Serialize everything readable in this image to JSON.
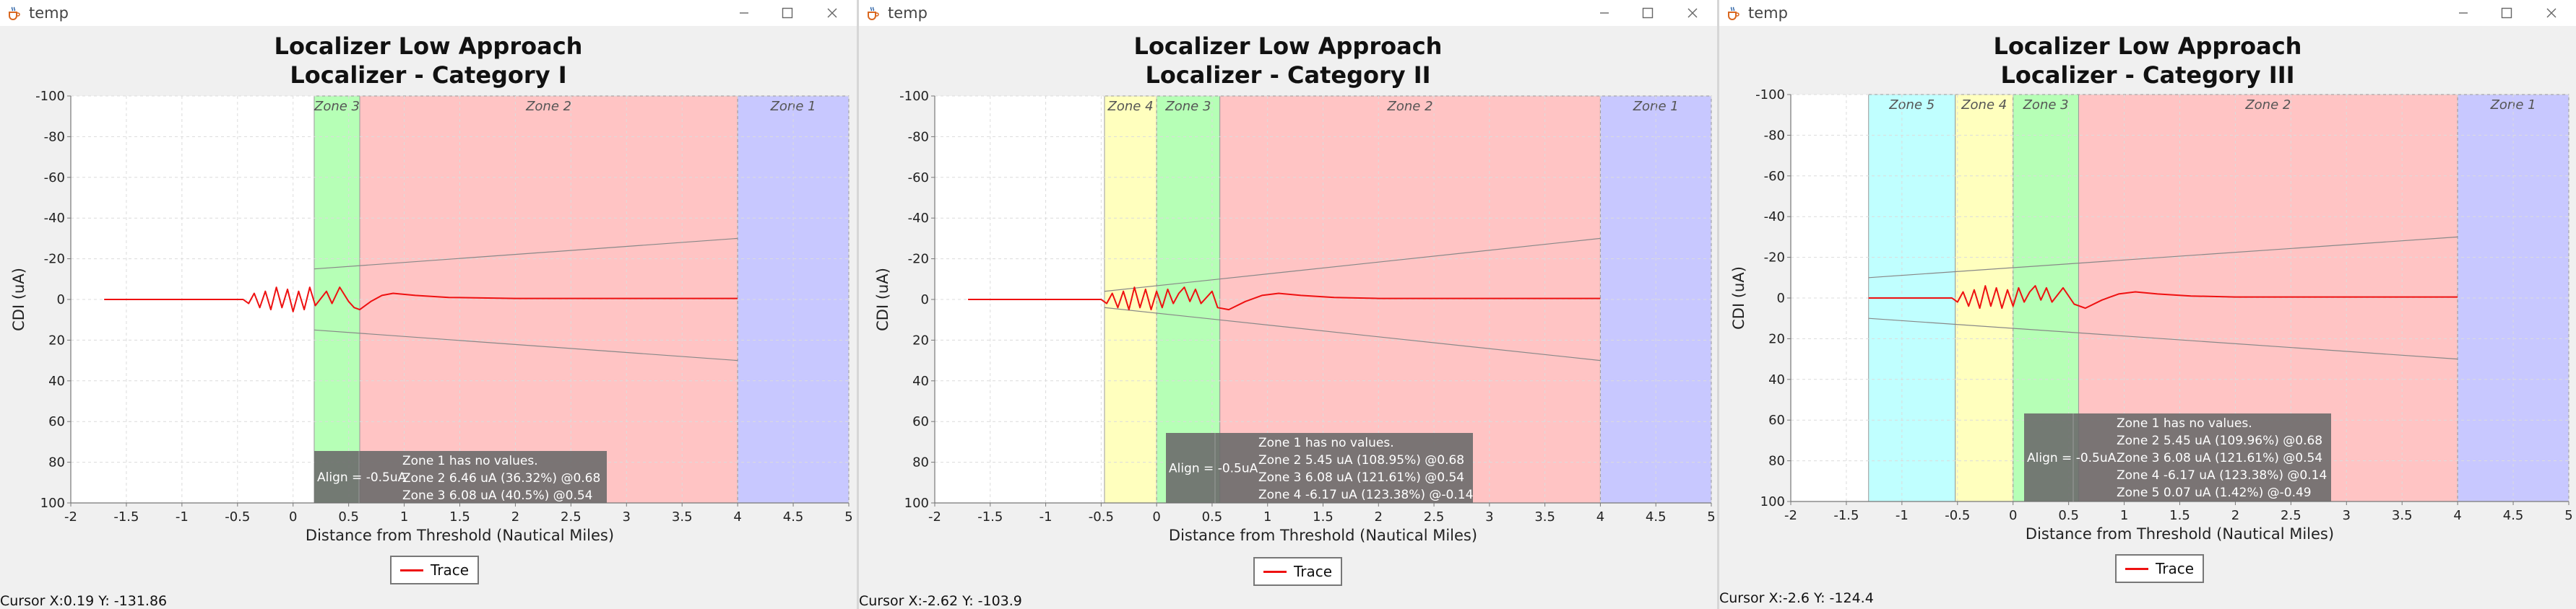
{
  "windows": [
    {
      "window_title": "temp",
      "title_line1": "Localizer Low Approach",
      "title_line2": "Localizer - Category I",
      "cursor_text": "Cursor X:0.19 Y: -131.86"
    },
    {
      "window_title": "temp",
      "title_line1": "Localizer Low Approach",
      "title_line2": "Localizer - Category II",
      "cursor_text": "Cursor X:-2.62 Y: -103.9"
    },
    {
      "window_title": "temp",
      "title_line1": "Localizer Low Approach",
      "title_line2": "Localizer - Category III",
      "cursor_text": "Cursor X:-2.6 Y: -124.4"
    }
  ],
  "chart_data": [
    {
      "type": "line",
      "title": "Localizer Low Approach\nLocalizer - Category I",
      "xlabel": "Distance from Threshold (Nautical Miles)",
      "ylabel": "CDI (uA)",
      "xlim": [
        -2,
        5
      ],
      "ylim": [
        100,
        -100
      ],
      "y_inverted": true,
      "grid": true,
      "legend_location": "bottom-center",
      "x_ticks": [
        -2,
        -1.5,
        -1,
        -0.5,
        0,
        0.5,
        1,
        1.5,
        2,
        2.5,
        3,
        3.5,
        4,
        4.5,
        5
      ],
      "y_ticks": [
        -100,
        -80,
        -60,
        -40,
        -20,
        0,
        20,
        40,
        60,
        80,
        100
      ],
      "zones": [
        {
          "name": "Zone 3",
          "x_start": 0.19,
          "x_end": 0.6,
          "color": "#b6ffb6"
        },
        {
          "name": "Zone 2",
          "x_start": 0.6,
          "x_end": 4.0,
          "color": "#ffc4c4"
        },
        {
          "name": "Zone 1",
          "x_start": 4.0,
          "x_end": 5.0,
          "color": "#c8c8ff"
        }
      ],
      "limits": [
        {
          "x": [
            0.19,
            4.0
          ],
          "y": [
            -15,
            -30
          ]
        },
        {
          "x": [
            0.19,
            4.0
          ],
          "y": [
            15,
            30
          ]
        }
      ],
      "series": [
        {
          "name": "Trace",
          "color": "#ee1111",
          "points": [
            [
              -1.7,
              0
            ],
            [
              -0.45,
              0
            ],
            [
              -0.4,
              2
            ],
            [
              -0.35,
              -3
            ],
            [
              -0.3,
              4
            ],
            [
              -0.25,
              -4
            ],
            [
              -0.2,
              5
            ],
            [
              -0.15,
              -6
            ],
            [
              -0.1,
              4
            ],
            [
              -0.05,
              -5
            ],
            [
              0.0,
              6
            ],
            [
              0.05,
              -4
            ],
            [
              0.1,
              5
            ],
            [
              0.15,
              -6
            ],
            [
              0.2,
              3
            ],
            [
              0.3,
              -4
            ],
            [
              0.35,
              2
            ],
            [
              0.42,
              -6
            ],
            [
              0.5,
              1
            ],
            [
              0.55,
              4
            ],
            [
              0.6,
              5
            ],
            [
              0.7,
              1
            ],
            [
              0.8,
              -2
            ],
            [
              0.9,
              -3
            ],
            [
              1.1,
              -2
            ],
            [
              1.4,
              -1
            ],
            [
              2.0,
              -0.5
            ],
            [
              3.0,
              -0.5
            ],
            [
              4.0,
              -0.5
            ]
          ]
        }
      ],
      "annotation": {
        "align": "Align = -0.5uA",
        "lines": [
          "Zone 1 has no values.",
          "Zone 2 6.46 uA (36.32%) @0.68",
          "Zone 3 6.08 uA (40.5%) @0.54"
        ]
      }
    },
    {
      "type": "line",
      "title": "Localizer Low Approach\nLocalizer - Category II",
      "xlabel": "Distance from Threshold (Nautical Miles)",
      "ylabel": "CDI (uA)",
      "xlim": [
        -2,
        5
      ],
      "ylim": [
        100,
        -100
      ],
      "y_inverted": true,
      "grid": true,
      "legend_location": "bottom-center",
      "x_ticks": [
        -2,
        -1.5,
        -1,
        -0.5,
        0,
        0.5,
        1,
        1.5,
        2,
        2.5,
        3,
        3.5,
        4,
        4.5,
        5
      ],
      "y_ticks": [
        -100,
        -80,
        -60,
        -40,
        -20,
        0,
        20,
        40,
        60,
        80,
        100
      ],
      "zones": [
        {
          "name": "Zone 4",
          "x_start": -0.47,
          "x_end": 0.0,
          "color": "#ffffbe"
        },
        {
          "name": "Zone 3",
          "x_start": 0.0,
          "x_end": 0.57,
          "color": "#b6ffb6"
        },
        {
          "name": "Zone 2",
          "x_start": 0.57,
          "x_end": 4.0,
          "color": "#ffc4c4"
        },
        {
          "name": "Zone 1",
          "x_start": 4.0,
          "x_end": 5.0,
          "color": "#c8c8ff"
        }
      ],
      "limits": [
        {
          "x": [
            -0.47,
            4.0
          ],
          "y": [
            -4,
            -30
          ]
        },
        {
          "x": [
            -0.47,
            4.0
          ],
          "y": [
            4,
            30
          ]
        }
      ],
      "series": [
        {
          "name": "Trace",
          "color": "#ee1111",
          "points": [
            [
              -1.7,
              0
            ],
            [
              -0.5,
              0
            ],
            [
              -0.45,
              2
            ],
            [
              -0.4,
              -3
            ],
            [
              -0.35,
              4
            ],
            [
              -0.3,
              -4
            ],
            [
              -0.25,
              5
            ],
            [
              -0.2,
              -6
            ],
            [
              -0.15,
              4
            ],
            [
              -0.1,
              -5
            ],
            [
              -0.05,
              5
            ],
            [
              0.0,
              -4
            ],
            [
              0.05,
              4
            ],
            [
              0.1,
              -5
            ],
            [
              0.15,
              2
            ],
            [
              0.2,
              -3
            ],
            [
              0.25,
              -6
            ],
            [
              0.3,
              1
            ],
            [
              0.35,
              -5
            ],
            [
              0.4,
              2
            ],
            [
              0.5,
              -4
            ],
            [
              0.55,
              4
            ],
            [
              0.65,
              5
            ],
            [
              0.8,
              1
            ],
            [
              0.95,
              -2
            ],
            [
              1.1,
              -3
            ],
            [
              1.3,
              -2
            ],
            [
              1.6,
              -1
            ],
            [
              2.0,
              -0.5
            ],
            [
              4.0,
              -0.5
            ]
          ]
        }
      ],
      "annotation": {
        "align": "Align = -0.5uA",
        "lines": [
          "Zone 1 has no values.",
          "Zone 2 5.45 uA (108.95%) @0.68",
          "Zone 3 6.08 uA (121.61%) @0.54",
          "Zone 4 -6.17 uA (123.38%) @-0.14"
        ]
      }
    },
    {
      "type": "line",
      "title": "Localizer Low Approach\nLocalizer - Category III",
      "xlabel": "Distance from Threshold (Nautical Miles)",
      "ylabel": "CDI (uA)",
      "xlim": [
        -2,
        5
      ],
      "ylim": [
        100,
        -100
      ],
      "y_inverted": true,
      "grid": true,
      "legend_location": "bottom-center",
      "x_ticks": [
        -2,
        -1.5,
        -1,
        -0.5,
        0,
        0.5,
        1,
        1.5,
        2,
        2.5,
        3,
        3.5,
        4,
        4.5,
        5
      ],
      "y_ticks": [
        -100,
        -80,
        -60,
        -40,
        -20,
        0,
        20,
        40,
        60,
        80,
        100
      ],
      "zones": [
        {
          "name": "Zone 5",
          "x_start": -1.3,
          "x_end": -0.52,
          "color": "#c0ffff"
        },
        {
          "name": "Zone 4",
          "x_start": -0.52,
          "x_end": 0.0,
          "color": "#ffffbe"
        },
        {
          "name": "Zone 3",
          "x_start": 0.0,
          "x_end": 0.59,
          "color": "#b6ffb6"
        },
        {
          "name": "Zone 2",
          "x_start": 0.59,
          "x_end": 4.0,
          "color": "#ffc4c4"
        },
        {
          "name": "Zone 1",
          "x_start": 4.0,
          "x_end": 5.0,
          "color": "#c8c8ff"
        }
      ],
      "limits": [
        {
          "x": [
            -1.3,
            4.0
          ],
          "y": [
            -10,
            -30
          ]
        },
        {
          "x": [
            -1.3,
            4.0
          ],
          "y": [
            10,
            30
          ]
        }
      ],
      "series": [
        {
          "name": "Trace",
          "color": "#ee1111",
          "points": [
            [
              -1.3,
              0
            ],
            [
              -0.55,
              0
            ],
            [
              -0.5,
              2
            ],
            [
              -0.45,
              -3
            ],
            [
              -0.4,
              4
            ],
            [
              -0.35,
              -4
            ],
            [
              -0.3,
              5
            ],
            [
              -0.25,
              -6
            ],
            [
              -0.2,
              4
            ],
            [
              -0.15,
              -5
            ],
            [
              -0.1,
              5
            ],
            [
              -0.05,
              -4
            ],
            [
              0.0,
              4
            ],
            [
              0.05,
              -5
            ],
            [
              0.1,
              2
            ],
            [
              0.15,
              -3
            ],
            [
              0.2,
              -6
            ],
            [
              0.25,
              1
            ],
            [
              0.3,
              -5
            ],
            [
              0.35,
              2
            ],
            [
              0.45,
              -5
            ],
            [
              0.55,
              3
            ],
            [
              0.65,
              5
            ],
            [
              0.8,
              1
            ],
            [
              0.95,
              -2
            ],
            [
              1.1,
              -3
            ],
            [
              1.3,
              -2
            ],
            [
              1.6,
              -1
            ],
            [
              2.0,
              -0.5
            ],
            [
              4.0,
              -0.5
            ]
          ]
        }
      ],
      "annotation": {
        "align": "Align = -0.5uA",
        "lines": [
          "Zone 1 has no values.",
          "Zone 2 5.45 uA (109.96%) @0.68",
          "Zone 3 6.08 uA (121.61%) @0.54",
          "Zone 4 -6.17 uA (123.38%) @0.14",
          "Zone 5 0.07 uA (1.42%) @-0.49"
        ]
      }
    }
  ]
}
